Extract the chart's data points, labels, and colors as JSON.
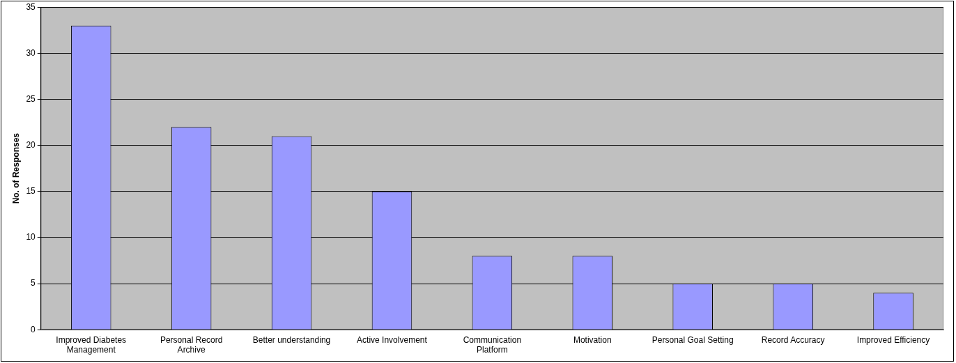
{
  "chart_data": {
    "type": "bar",
    "ylabel": "No. of Responses",
    "categories": [
      "Improved Diabetes Management",
      "Personal Record Archive",
      "Better understanding",
      "Active Involvement",
      "Communication Platform",
      "Motivation",
      "Personal Goal Setting",
      "Record Accuracy",
      "Improved Efficiency"
    ],
    "values": [
      33,
      22,
      21,
      15,
      8,
      8,
      5,
      5,
      4
    ],
    "color": "#9999ff",
    "ylim": [
      0,
      35
    ],
    "yticks": [
      0,
      5,
      10,
      15,
      20,
      25,
      30,
      35
    ],
    "grid": "y",
    "legend": false
  }
}
